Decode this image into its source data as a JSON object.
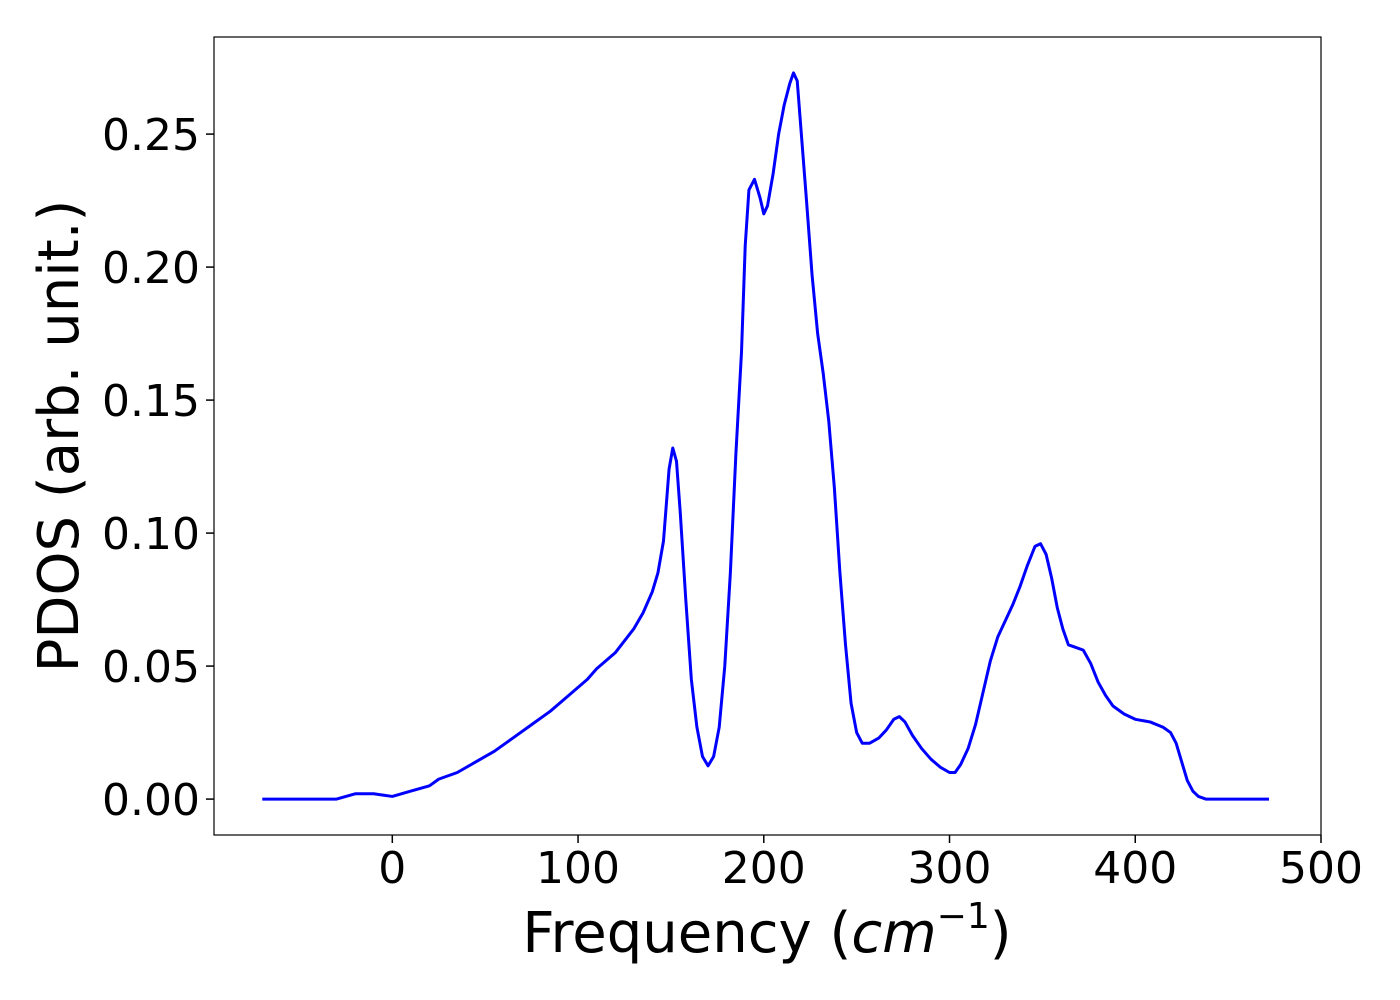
{
  "chart_data": {
    "type": "line",
    "xlabel": [
      "Frequency (",
      "cm",
      "−1",
      ")"
    ],
    "ylabel": "PDOS (arb. unit.)",
    "xlim": [
      -96,
      500
    ],
    "ylim": [
      -0.0135,
      0.2865
    ],
    "xticks": [
      0,
      100,
      200,
      300,
      400,
      500
    ],
    "yticks": [
      {
        "value": 0,
        "label": "0.00"
      },
      {
        "value": 0.05,
        "label": "0.05"
      },
      {
        "value": 0.1,
        "label": "0.10"
      },
      {
        "value": 0.15,
        "label": "0.15"
      },
      {
        "value": 0.2,
        "label": "0.20"
      },
      {
        "value": 0.25,
        "label": "0.25"
      }
    ],
    "grid": false,
    "x": [
      -70,
      -30,
      -20,
      -10,
      0,
      10,
      20,
      25,
      35,
      45,
      55,
      65,
      75,
      85,
      95,
      105,
      110,
      120,
      130,
      135,
      140,
      143,
      146,
      149,
      151,
      153,
      155,
      158,
      161,
      164,
      167,
      170,
      173,
      176,
      179,
      182,
      185,
      188,
      190,
      192,
      195,
      198,
      200,
      202,
      205,
      208,
      211,
      214,
      216,
      218,
      220,
      223,
      226,
      229,
      232,
      235,
      238,
      241,
      244,
      247,
      250,
      253,
      257,
      262,
      266,
      270,
      273,
      276,
      280,
      285,
      290,
      295,
      300,
      303,
      306,
      310,
      314,
      318,
      322,
      326,
      330,
      334,
      338,
      342,
      346,
      349,
      352,
      355,
      358,
      361,
      364,
      368,
      372,
      376,
      380,
      384,
      388,
      394,
      400,
      408,
      415,
      419,
      422,
      425,
      428,
      431,
      434,
      438,
      472
    ],
    "series": [
      {
        "name": "PDOS",
        "color": "#0000ff",
        "values": [
          0,
          0,
          0.002,
          0.002,
          0.001,
          0.003,
          0.005,
          0.0075,
          0.01,
          0.014,
          0.018,
          0.023,
          0.028,
          0.033,
          0.039,
          0.045,
          0.049,
          0.055,
          0.064,
          0.07,
          0.078,
          0.085,
          0.097,
          0.124,
          0.132,
          0.127,
          0.108,
          0.075,
          0.045,
          0.027,
          0.016,
          0.0125,
          0.016,
          0.027,
          0.05,
          0.085,
          0.13,
          0.168,
          0.208,
          0.229,
          0.233,
          0.226,
          0.22,
          0.223,
          0.235,
          0.25,
          0.261,
          0.269,
          0.273,
          0.27,
          0.252,
          0.225,
          0.197,
          0.175,
          0.16,
          0.142,
          0.117,
          0.085,
          0.058,
          0.036,
          0.025,
          0.021,
          0.021,
          0.023,
          0.026,
          0.03,
          0.031,
          0.029,
          0.024,
          0.019,
          0.015,
          0.012,
          0.01,
          0.01,
          0.013,
          0.019,
          0.028,
          0.04,
          0.052,
          0.061,
          0.067,
          0.073,
          0.08,
          0.088,
          0.095,
          0.096,
          0.092,
          0.083,
          0.072,
          0.064,
          0.058,
          0.057,
          0.056,
          0.051,
          0.044,
          0.039,
          0.035,
          0.032,
          0.03,
          0.029,
          0.027,
          0.025,
          0.021,
          0.014,
          0.007,
          0.003,
          0.001,
          0,
          0
        ]
      }
    ]
  }
}
